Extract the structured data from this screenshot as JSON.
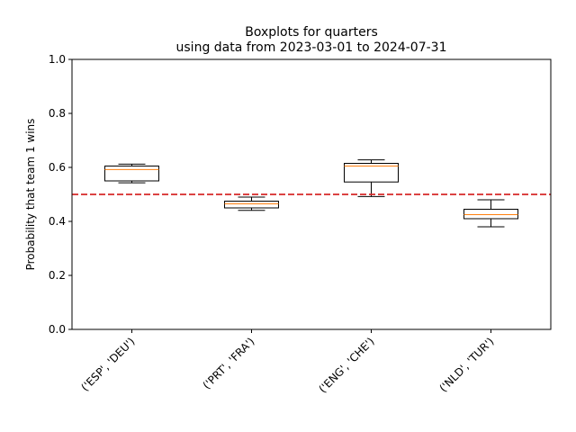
{
  "chart_data": {
    "type": "box",
    "title_lines": [
      "Boxplots for quarters",
      "using data from 2023-03-01 to 2024-07-31"
    ],
    "xlabel": "",
    "ylabel": "Probability that team 1 wins",
    "ylim": [
      0.0,
      1.0
    ],
    "yticks": [
      "0.0",
      "0.2",
      "0.4",
      "0.6",
      "0.8",
      "1.0"
    ],
    "categories": [
      "('ESP', 'DEU')",
      "('PRT', 'FRA')",
      "('ENG', 'CHE')",
      "('NLD', 'TUR')"
    ],
    "boxes": [
      {
        "whisker_low": 0.543,
        "q1": 0.55,
        "median": 0.592,
        "q3": 0.605,
        "whisker_high": 0.612
      },
      {
        "whisker_low": 0.441,
        "q1": 0.45,
        "median": 0.465,
        "q3": 0.475,
        "whisker_high": 0.49
      },
      {
        "whisker_low": 0.492,
        "q1": 0.546,
        "median": 0.605,
        "q3": 0.615,
        "whisker_high": 0.628
      },
      {
        "whisker_low": 0.38,
        "q1": 0.41,
        "median": 0.425,
        "q3": 0.445,
        "whisker_high": 0.48
      }
    ],
    "reference_line": {
      "y": 0.5,
      "style": "dashed",
      "color": "#d62728"
    },
    "grid": false,
    "colors": {
      "box": "#000000",
      "median": "#ff7f0e"
    }
  }
}
